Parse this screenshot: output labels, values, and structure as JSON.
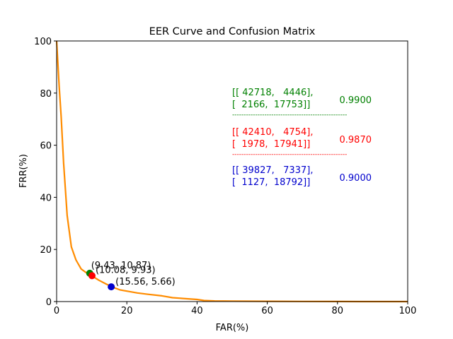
{
  "chart_data": {
    "type": "line",
    "title": "EER Curve and Confusion Matrix",
    "xlabel": "FAR(%)",
    "ylabel": "FRR(%)",
    "xlim": [
      0,
      100
    ],
    "ylim": [
      0,
      100
    ],
    "xticks": [
      0,
      20,
      40,
      60,
      80,
      100
    ],
    "yticks": [
      0,
      20,
      40,
      60,
      80,
      100
    ],
    "xtick_labels": [
      "0",
      "20",
      "40",
      "60",
      "80",
      "100"
    ],
    "ytick_labels": [
      "0",
      "20",
      "40",
      "60",
      "80",
      "100"
    ],
    "grid": false,
    "series": [
      {
        "color": "#ff8c00",
        "x": [
          0,
          0.7,
          1.3,
          2.0,
          3.0,
          4.2,
          5.5,
          7.0,
          8.5,
          10.0,
          12.0,
          14.0,
          16.0,
          18.0,
          20.0,
          23.0,
          26.0,
          30.0,
          33.0,
          36.0,
          40.0,
          42.0,
          45.0,
          50.0,
          60.0,
          70.0,
          80.0,
          90.0,
          100.0
        ],
        "y": [
          100,
          83,
          71,
          53,
          33,
          21,
          16,
          12.5,
          11.0,
          9.93,
          8.2,
          6.8,
          5.5,
          4.5,
          4.0,
          3.3,
          2.8,
          2.2,
          1.5,
          1.2,
          0.8,
          0.4,
          0.25,
          0.15,
          0.1,
          0.05,
          0.03,
          0.01,
          0
        ]
      }
    ],
    "points": [
      {
        "x": 9.43,
        "y": 10.87,
        "label": "(9.43, 10.87)",
        "color": "#008000"
      },
      {
        "x": 10.08,
        "y": 9.93,
        "label": "(10.08, 9.93)",
        "color": "#ff0000"
      },
      {
        "x": 15.56,
        "y": 5.66,
        "label": "(15.56, 5.66)",
        "color": "#0000cd"
      }
    ],
    "annotations": [
      {
        "line1": "[[ 42718,   4446],",
        "line2": "[  2166,  17753]]",
        "value": "0.9900",
        "color": "#008000"
      },
      {
        "line1": "[[ 42410,   4754],",
        "line2": "[  1978,  17941]]",
        "value": "0.9870",
        "color": "#ff0000"
      },
      {
        "line1": "[[ 39827,   7337],",
        "line2": "[  1127,  18792]]",
        "value": "0.9000",
        "color": "#0000cd"
      }
    ],
    "separator": "--------------------------------------------------"
  }
}
